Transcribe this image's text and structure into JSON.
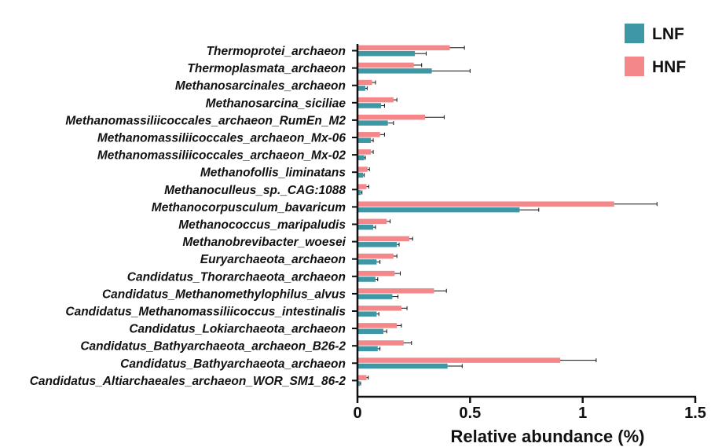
{
  "chart_data": {
    "type": "bar",
    "orientation": "horizontal",
    "xlabel": "Relative abundance (%)",
    "ylabel": "",
    "xlim": [
      0,
      1.5
    ],
    "xticks": [
      0,
      0.5,
      1,
      1.5
    ],
    "xtick_labels": [
      "0",
      "0.5",
      "1",
      "1.5"
    ],
    "grid": false,
    "legend_position": "top-right",
    "error_bars": true,
    "categories": [
      "Thermoprotei_archaeon",
      "Thermoplasmata_archaeon",
      "Methanosarcinales_archaeon",
      "Methanosarcina_siciliae",
      "Methanomassiliicoccales_archaeon_RumEn_M2",
      "Methanomassiliicoccales_archaeon_Mx-06",
      "Methanomassiliicoccales_archaeon_Mx-02",
      "Methanofollis_liminatans",
      "Methanoculleus_sp._CAG:1088",
      "Methanocorpusculum_bavaricum",
      "Methanococcus_maripaludis",
      "Methanobrevibacter_woesei",
      "Euryarchaeota_archaeon",
      "Candidatus_Thorarchaeota_archaeon",
      "Candidatus_Methanomethylophilus_alvus",
      "Candidatus_Methanomassiliicoccus_intestinalis",
      "Candidatus_Lokiarchaeota_archaeon",
      "Candidatus_Bathyarchaeota_archaeon_B26-2",
      "Candidatus_Bathyarchaeota_archaeon",
      "Candidatus_Altiarchaeales_archaeon_WOR_SM1_86-2"
    ],
    "series": [
      {
        "name": "HNF",
        "color": "#f4878a",
        "values": [
          0.41,
          0.25,
          0.065,
          0.16,
          0.3,
          0.1,
          0.06,
          0.045,
          0.04,
          1.14,
          0.13,
          0.23,
          0.16,
          0.165,
          0.34,
          0.195,
          0.175,
          0.205,
          0.9,
          0.04
        ],
        "errors": [
          0.065,
          0.035,
          0.015,
          0.015,
          0.085,
          0.02,
          0.01,
          0.008,
          0.01,
          0.19,
          0.015,
          0.015,
          0.015,
          0.025,
          0.055,
          0.025,
          0.02,
          0.035,
          0.16,
          0.008
        ]
      },
      {
        "name": "LNF",
        "color": "#3d97a4",
        "values": [
          0.255,
          0.33,
          0.035,
          0.105,
          0.135,
          0.06,
          0.03,
          0.025,
          0.015,
          0.72,
          0.07,
          0.175,
          0.085,
          0.08,
          0.155,
          0.085,
          0.115,
          0.09,
          0.4,
          0.01
        ],
        "errors": [
          0.05,
          0.17,
          0.008,
          0.015,
          0.025,
          0.01,
          0.005,
          0.005,
          0.005,
          0.085,
          0.01,
          0.01,
          0.015,
          0.01,
          0.025,
          0.01,
          0.015,
          0.01,
          0.065,
          0.004
        ]
      }
    ]
  }
}
